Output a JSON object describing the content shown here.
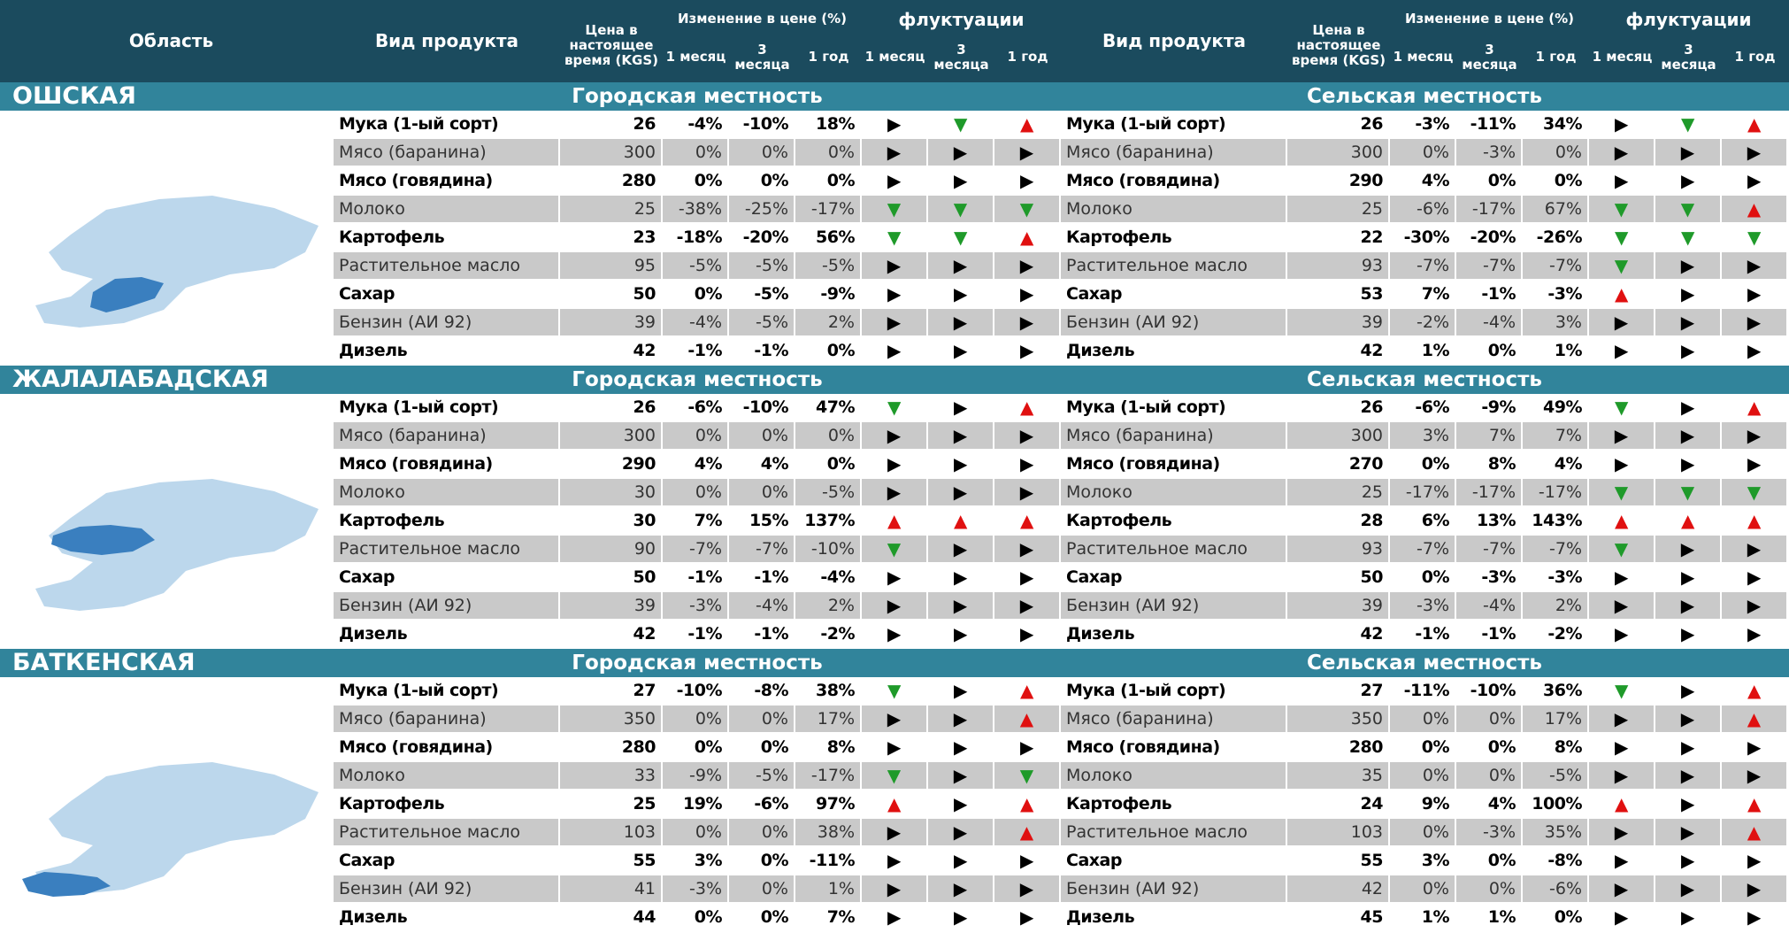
{
  "header": {
    "region": "Область",
    "product": "Вид продукта",
    "price": "Цена в настоящее время (KGS)",
    "change": "Изменение в цене (%)",
    "change_cols": [
      "1 месяц",
      "3 месяца",
      "1 год"
    ],
    "fluct": "флуктуации",
    "fluct_cols": [
      "1 месяц",
      "3 месяца",
      "1 год"
    ]
  },
  "regions": [
    {
      "name": "ОШСКАЯ",
      "sections": [
        {
          "title": "Городская местность",
          "rows": [
            [
              "Мука (1-ый сорт)",
              "26",
              "-4%",
              "-10%",
              "18%",
              "▶",
              "▼",
              "▲"
            ],
            [
              "Мясо (баранина)",
              "300",
              "0%",
              "0%",
              "0%",
              "▶",
              "▶",
              "▶"
            ],
            [
              "Мясо (говядина)",
              "280",
              "0%",
              "0%",
              "0%",
              "▶",
              "▶",
              "▶"
            ],
            [
              "Молоко",
              "25",
              "-38%",
              "-25%",
              "-17%",
              "▼",
              "▼",
              "▼"
            ],
            [
              "Картофель",
              "23",
              "-18%",
              "-20%",
              "56%",
              "▼",
              "▼",
              "▲"
            ],
            [
              "Растительное масло",
              "95",
              "-5%",
              "-5%",
              "-5%",
              "▶",
              "▶",
              "▶"
            ],
            [
              "Сахар",
              "50",
              "0%",
              "-5%",
              "-9%",
              "▶",
              "▶",
              "▶"
            ],
            [
              "Бензин (АИ 92)",
              "39",
              "-4%",
              "-5%",
              "2%",
              "▶",
              "▶",
              "▶"
            ],
            [
              "Дизель",
              "42",
              "-1%",
              "-1%",
              "0%",
              "▶",
              "▶",
              "▶"
            ]
          ]
        },
        {
          "title": "Сельская местность",
          "rows": [
            [
              "Мука (1-ый сорт)",
              "26",
              "-3%",
              "-11%",
              "34%",
              "▶",
              "▼",
              "▲"
            ],
            [
              "Мясо (баранина)",
              "300",
              "0%",
              "-3%",
              "0%",
              "▶",
              "▶",
              "▶"
            ],
            [
              "Мясо (говядина)",
              "290",
              "4%",
              "0%",
              "0%",
              "▶",
              "▶",
              "▶"
            ],
            [
              "Молоко",
              "25",
              "-6%",
              "-17%",
              "67%",
              "▼",
              "▼",
              "▲"
            ],
            [
              "Картофель",
              "22",
              "-30%",
              "-20%",
              "-26%",
              "▼",
              "▼",
              "▼"
            ],
            [
              "Растительное масло",
              "93",
              "-7%",
              "-7%",
              "-7%",
              "▼",
              "▶",
              "▶"
            ],
            [
              "Сахар",
              "53",
              "7%",
              "-1%",
              "-3%",
              "▲",
              "▶",
              "▶"
            ],
            [
              "Бензин (АИ 92)",
              "39",
              "-2%",
              "-4%",
              "3%",
              "▶",
              "▶",
              "▶"
            ],
            [
              "Дизель",
              "42",
              "1%",
              "0%",
              "1%",
              "▶",
              "▶",
              "▶"
            ]
          ]
        }
      ]
    },
    {
      "name": "ЖАЛАЛАБАДСКАЯ",
      "sections": [
        {
          "title": "Городская местность",
          "rows": [
            [
              "Мука (1-ый сорт)",
              "26",
              "-6%",
              "-10%",
              "47%",
              "▼",
              "▶",
              "▲"
            ],
            [
              "Мясо (баранина)",
              "300",
              "0%",
              "0%",
              "0%",
              "▶",
              "▶",
              "▶"
            ],
            [
              "Мясо (говядина)",
              "290",
              "4%",
              "4%",
              "0%",
              "▶",
              "▶",
              "▶"
            ],
            [
              "Молоко",
              "30",
              "0%",
              "0%",
              "-5%",
              "▶",
              "▶",
              "▶"
            ],
            [
              "Картофель",
              "30",
              "7%",
              "15%",
              "137%",
              "▲",
              "▲",
              "▲"
            ],
            [
              "Растительное масло",
              "90",
              "-7%",
              "-7%",
              "-10%",
              "▼",
              "▶",
              "▶"
            ],
            [
              "Сахар",
              "50",
              "-1%",
              "-1%",
              "-4%",
              "▶",
              "▶",
              "▶"
            ],
            [
              "Бензин (АИ 92)",
              "39",
              "-3%",
              "-4%",
              "2%",
              "▶",
              "▶",
              "▶"
            ],
            [
              "Дизель",
              "42",
              "-1%",
              "-1%",
              "-2%",
              "▶",
              "▶",
              "▶"
            ]
          ]
        },
        {
          "title": "Сельская местность",
          "rows": [
            [
              "Мука (1-ый сорт)",
              "26",
              "-6%",
              "-9%",
              "49%",
              "▼",
              "▶",
              "▲"
            ],
            [
              "Мясо (баранина)",
              "300",
              "3%",
              "7%",
              "7%",
              "▶",
              "▶",
              "▶"
            ],
            [
              "Мясо (говядина)",
              "270",
              "0%",
              "8%",
              "4%",
              "▶",
              "▶",
              "▶"
            ],
            [
              "Молоко",
              "25",
              "-17%",
              "-17%",
              "-17%",
              "▼",
              "▼",
              "▼"
            ],
            [
              "Картофель",
              "28",
              "6%",
              "13%",
              "143%",
              "▲",
              "▲",
              "▲"
            ],
            [
              "Растительное масло",
              "93",
              "-7%",
              "-7%",
              "-7%",
              "▼",
              "▶",
              "▶"
            ],
            [
              "Сахар",
              "50",
              "0%",
              "-3%",
              "-3%",
              "▶",
              "▶",
              "▶"
            ],
            [
              "Бензин (АИ 92)",
              "39",
              "-3%",
              "-4%",
              "2%",
              "▶",
              "▶",
              "▶"
            ],
            [
              "Дизель",
              "42",
              "-1%",
              "-1%",
              "-2%",
              "▶",
              "▶",
              "▶"
            ]
          ]
        }
      ]
    },
    {
      "name": "БАТКЕНСКАЯ",
      "sections": [
        {
          "title": "Городская местность",
          "rows": [
            [
              "Мука (1-ый сорт)",
              "27",
              "-10%",
              "-8%",
              "38%",
              "▼",
              "▶",
              "▲"
            ],
            [
              "Мясо (баранина)",
              "350",
              "0%",
              "0%",
              "17%",
              "▶",
              "▶",
              "▲"
            ],
            [
              "Мясо (говядина)",
              "280",
              "0%",
              "0%",
              "8%",
              "▶",
              "▶",
              "▶"
            ],
            [
              "Молоко",
              "33",
              "-9%",
              "-5%",
              "-17%",
              "▼",
              "▶",
              "▼"
            ],
            [
              "Картофель",
              "25",
              "19%",
              "-6%",
              "97%",
              "▲",
              "▶",
              "▲"
            ],
            [
              "Растительное масло",
              "103",
              "0%",
              "0%",
              "38%",
              "▶",
              "▶",
              "▲"
            ],
            [
              "Сахар",
              "55",
              "3%",
              "0%",
              "-11%",
              "▶",
              "▶",
              "▶"
            ],
            [
              "Бензин (АИ 92)",
              "41",
              "-3%",
              "0%",
              "1%",
              "▶",
              "▶",
              "▶"
            ],
            [
              "Дизель",
              "44",
              "0%",
              "0%",
              "7%",
              "▶",
              "▶",
              "▶"
            ]
          ]
        },
        {
          "title": "Сельская местность",
          "rows": [
            [
              "Мука (1-ый сорт)",
              "27",
              "-11%",
              "-10%",
              "36%",
              "▼",
              "▶",
              "▲"
            ],
            [
              "Мясо (баранина)",
              "350",
              "0%",
              "0%",
              "17%",
              "▶",
              "▶",
              "▲"
            ],
            [
              "Мясо (говядина)",
              "280",
              "0%",
              "0%",
              "8%",
              "▶",
              "▶",
              "▶"
            ],
            [
              "Молоко",
              "35",
              "0%",
              "0%",
              "-5%",
              "▶",
              "▶",
              "▶"
            ],
            [
              "Картофель",
              "24",
              "9%",
              "4%",
              "100%",
              "▲",
              "▶",
              "▲"
            ],
            [
              "Растительное масло",
              "103",
              "0%",
              "-3%",
              "35%",
              "▶",
              "▶",
              "▲"
            ],
            [
              "Сахар",
              "55",
              "3%",
              "0%",
              "-8%",
              "▶",
              "▶",
              "▶"
            ],
            [
              "Бензин (АИ 92)",
              "42",
              "0%",
              "0%",
              "-6%",
              "▶",
              "▶",
              "▶"
            ],
            [
              "Дизель",
              "45",
              "1%",
              "1%",
              "0%",
              "▶",
              "▶",
              "▶"
            ]
          ]
        }
      ]
    }
  ]
}
